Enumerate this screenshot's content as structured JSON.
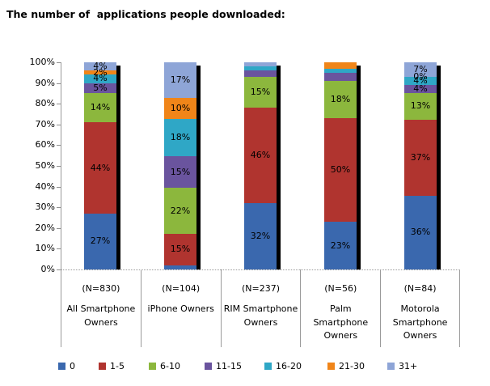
{
  "title": "The number of  applications people downloaded:",
  "chart_data": {
    "type": "bar",
    "stacked": true,
    "orientation": "vertical",
    "unit": "percent",
    "title": "The number of  applications people downloaded:",
    "ylim": [
      0,
      100
    ],
    "y_ticks": [
      "100%",
      "90%",
      "80%",
      "70%",
      "60%",
      "50%",
      "40%",
      "30%",
      "20%",
      "10%",
      "0%"
    ],
    "grid": false,
    "legend_position": "bottom",
    "categories": [
      {
        "n_label": "(N=830)",
        "name": "All Smartphone Owners",
        "name_lines": [
          "All Smartphone",
          "Owners"
        ]
      },
      {
        "n_label": "(N=104)",
        "name": "iPhone Owners",
        "name_lines": [
          "iPhone Owners"
        ]
      },
      {
        "n_label": "(N=237)",
        "name": "RIM Smartphone Owners",
        "name_lines": [
          "RIM Smartphone",
          "Owners"
        ]
      },
      {
        "n_label": "(N=56)",
        "name": "Palm Smartphone Owners",
        "name_lines": [
          "Palm Smartphone",
          "Owners"
        ]
      },
      {
        "n_label": "(N=84)",
        "name": "Motorola Smartphone Owners",
        "name_lines": [
          "Motorola",
          "Smartphone",
          "Owners"
        ]
      }
    ],
    "series": [
      {
        "name": "0",
        "color": "#3A68AE",
        "values": [
          27,
          2,
          32,
          23,
          36
        ],
        "labels": [
          "27%",
          null,
          "32%",
          "23%",
          "36%"
        ]
      },
      {
        "name": "1-5",
        "color": "#B0342F",
        "values": [
          44,
          15,
          46,
          50,
          37
        ],
        "labels": [
          "44%",
          "15%",
          "46%",
          "50%",
          "37%"
        ]
      },
      {
        "name": "6-10",
        "color": "#8CB73D",
        "values": [
          14,
          22,
          15,
          18,
          13
        ],
        "labels": [
          "14%",
          "22%",
          "15%",
          "18%",
          "13%"
        ]
      },
      {
        "name": "11-15",
        "color": "#6A549E",
        "values": [
          5,
          15,
          3,
          4,
          4
        ],
        "labels": [
          "5%",
          "15%",
          null,
          null,
          "4%"
        ]
      },
      {
        "name": "16-20",
        "color": "#2FA7C6",
        "values": [
          4,
          18,
          2,
          2,
          4
        ],
        "labels": [
          "4%",
          "18%",
          null,
          null,
          "4%"
        ]
      },
      {
        "name": "21-30",
        "color": "#F08519",
        "values": [
          2,
          10,
          0,
          3,
          0
        ],
        "labels": [
          "2%",
          "10%",
          null,
          null,
          "0%"
        ]
      },
      {
        "name": "31+",
        "color": "#8EA5D7",
        "values": [
          4,
          17,
          2,
          0,
          7
        ],
        "labels": [
          "4%",
          "17%",
          null,
          null,
          "7%"
        ]
      }
    ]
  }
}
